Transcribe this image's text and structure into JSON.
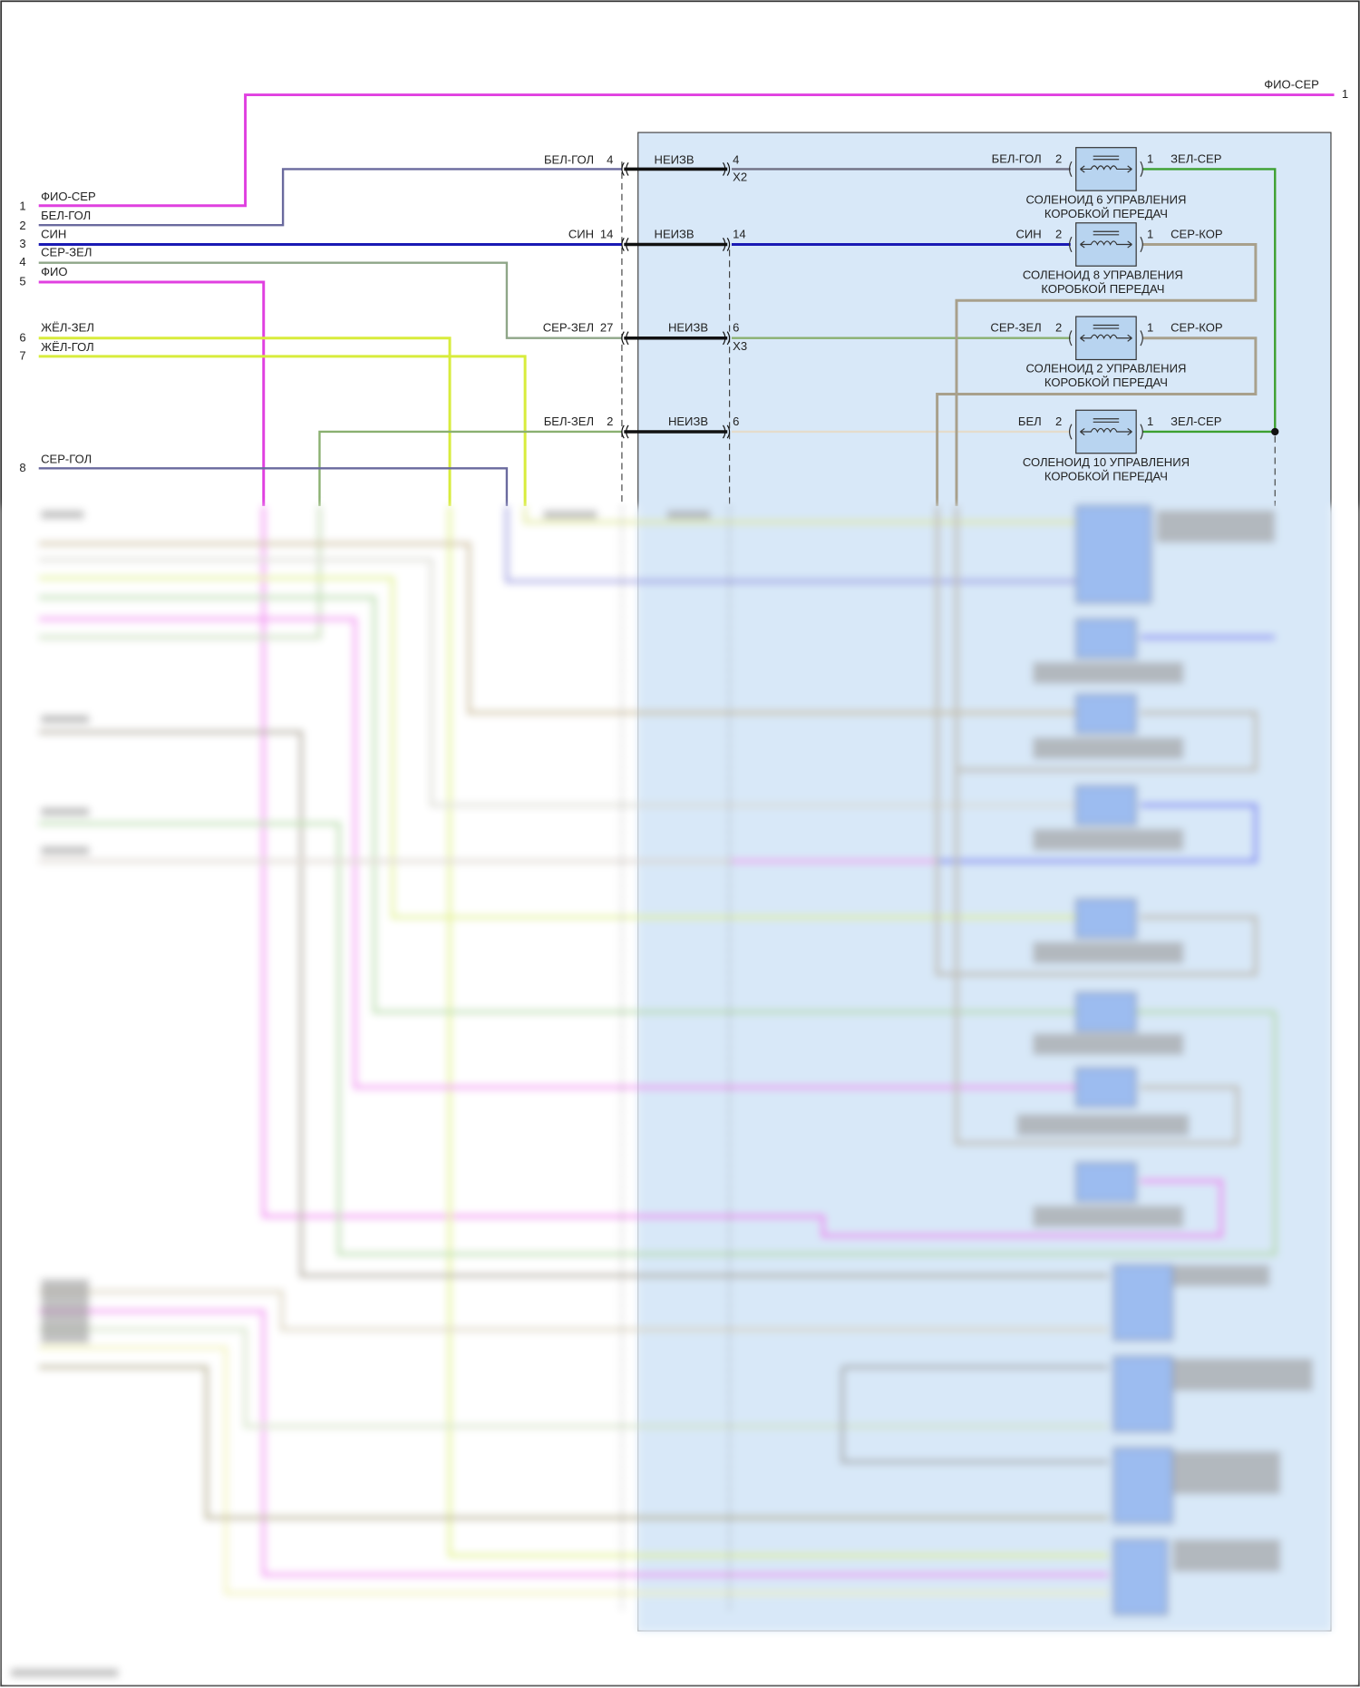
{
  "top_wire": {
    "label": "ФИО-СЕР",
    "pin": "1",
    "color": "#e040e0"
  },
  "left_pins": [
    {
      "pin": "1",
      "label": "ФИО-СЕР",
      "color": "#e040e0"
    },
    {
      "pin": "2",
      "label": "БЕЛ-ГОЛ",
      "color": "#6a6a9e"
    },
    {
      "pin": "3",
      "label": "СИН",
      "color": "#1a1ab4"
    },
    {
      "pin": "4",
      "label": "СЕР-ЗЕЛ",
      "color": "#8fa688"
    },
    {
      "pin": "5",
      "label": "ФИО",
      "color": "#e040e0"
    },
    {
      "pin": "6",
      "label": "ЖЁЛ-ЗЕЛ",
      "color": "#d8ec3c"
    },
    {
      "pin": "7",
      "label": "ЖЁЛ-ГОЛ",
      "color": "#d8ec3c"
    },
    {
      "pin": "8",
      "label": "СЕР-ГОЛ",
      "color": "#6a6a9e"
    }
  ],
  "connector_rows": [
    {
      "wire": "БЕЛ-ГОЛ",
      "pin": "4",
      "inner": "НЕИЗВ",
      "inner_pin": "4",
      "connector": "X2"
    },
    {
      "wire": "СИН",
      "pin": "14",
      "inner": "НЕИЗВ",
      "inner_pin": "14",
      "connector": ""
    },
    {
      "wire": "СЕР-ЗЕЛ",
      "pin": "27",
      "inner": "НЕИЗВ",
      "inner_pin": "6",
      "connector": "X3"
    },
    {
      "wire": "БЕЛ-ЗЕЛ",
      "pin": "2",
      "inner": "НЕИЗВ",
      "inner_pin": "6",
      "connector": ""
    }
  ],
  "solenoids": [
    {
      "in_wire": "БЕЛ-ГОЛ",
      "in_pin": "2",
      "out_pin": "1",
      "out_wire": "ЗЕЛ-СЕР",
      "name_1": "СОЛЕНОИД 6 УПРАВЛЕНИЯ",
      "name_2": "КОРОБКОЙ ПЕРЕДАЧ"
    },
    {
      "in_wire": "СИН",
      "in_pin": "2",
      "out_pin": "1",
      "out_wire": "СЕР-КОР",
      "name_1": "СОЛЕНОИД 8 УПРАВЛЕНИЯ",
      "name_2": "КОРОБКОЙ ПЕРЕДАЧ"
    },
    {
      "in_wire": "СЕР-ЗЕЛ",
      "in_pin": "2",
      "out_pin": "1",
      "out_wire": "СЕР-КОР",
      "name_1": "СОЛЕНОИД 2 УПРАВЛЕНИЯ",
      "name_2": "КОРОБКОЙ ПЕРЕДАЧ"
    },
    {
      "in_wire": "БЕЛ",
      "in_pin": "2",
      "out_pin": "1",
      "out_wire": "ЗЕЛ-СЕР",
      "name_1": "СОЛЕНОИД 10 УПРАВЛЕНИЯ",
      "name_2": "КОРОБКОЙ ПЕРЕДАЧ"
    }
  ],
  "colors": {
    "module_fill": "#d8e8f8",
    "solenoid_fill": "#b8d4f0",
    "ground_green": "#3ca030",
    "brown_grey": "#a8a08c"
  }
}
